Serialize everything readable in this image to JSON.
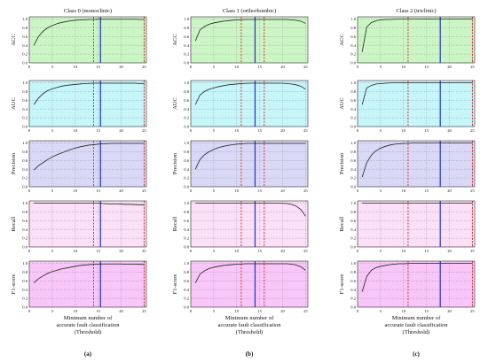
{
  "figure": {
    "columns": [
      {
        "title": "Class 0 (monoclinic)",
        "panel_label": "(a)",
        "red_lines": [
          14,
          25
        ],
        "blue_line": 15.5
      },
      {
        "title": "Class 1 (orthorhombic)",
        "panel_label": "(b)",
        "red_lines": [
          11,
          16
        ],
        "blue_line": 14
      },
      {
        "title": "Class 2 (triclinic)",
        "panel_label": "(c)",
        "red_lines": [
          11,
          25
        ],
        "blue_line": 18
      }
    ],
    "rows": [
      {
        "ylabel": "ACC",
        "fill": "#ccf5c6"
      },
      {
        "ylabel": "AUC",
        "fill": "#c6f6fa"
      },
      {
        "ylabel": "Precision",
        "fill": "#d9d9f7"
      },
      {
        "ylabel": "Recall",
        "fill": "#fbe0f7"
      },
      {
        "ylabel": "F1-score",
        "fill": "#f8c6f8"
      }
    ],
    "xlabel_lines": [
      "Minimum number of",
      "accurate fault classification",
      "(Threshold)"
    ],
    "line_colors": {
      "curve": "#222222",
      "red": "#e02020",
      "blue": "#1f2fcf"
    }
  },
  "chart_data": {
    "type": "line",
    "x": [
      1,
      2,
      3,
      4,
      5,
      6,
      7,
      8,
      9,
      10,
      11,
      12,
      13,
      14,
      15,
      16,
      17,
      18,
      19,
      20,
      21,
      22,
      23,
      24,
      25
    ],
    "xlim": [
      0,
      25.5
    ],
    "ylim": [
      0,
      1.05
    ],
    "xticks": [
      0,
      5,
      10,
      15,
      20,
      25
    ],
    "yticks": [
      0.0,
      0.2,
      0.4,
      0.6,
      0.8,
      1.0
    ],
    "grid": true,
    "series": [
      {
        "class": 0,
        "metric": "ACC",
        "values": [
          0.4,
          0.6,
          0.72,
          0.8,
          0.85,
          0.89,
          0.92,
          0.94,
          0.96,
          0.97,
          0.98,
          0.985,
          0.99,
          0.99,
          0.995,
          0.995,
          0.995,
          0.995,
          0.995,
          0.995,
          0.995,
          0.995,
          0.995,
          0.99,
          0.99
        ]
      },
      {
        "class": 0,
        "metric": "AUC",
        "values": [
          0.5,
          0.65,
          0.75,
          0.82,
          0.86,
          0.89,
          0.92,
          0.94,
          0.95,
          0.96,
          0.97,
          0.98,
          0.985,
          0.99,
          0.99,
          0.99,
          0.99,
          0.99,
          0.99,
          0.99,
          0.99,
          0.99,
          0.99,
          0.98,
          0.98
        ]
      },
      {
        "class": 0,
        "metric": "Precision",
        "values": [
          0.38,
          0.48,
          0.55,
          0.62,
          0.68,
          0.73,
          0.77,
          0.81,
          0.85,
          0.88,
          0.91,
          0.93,
          0.95,
          0.96,
          0.97,
          0.98,
          0.985,
          0.99,
          0.99,
          0.99,
          0.99,
          0.99,
          0.99,
          0.99,
          0.99
        ]
      },
      {
        "class": 0,
        "metric": "Recall",
        "values": [
          1.0,
          1.0,
          1.0,
          1.0,
          1.0,
          1.0,
          1.0,
          1.0,
          1.0,
          1.0,
          1.0,
          1.0,
          1.0,
          1.0,
          1.0,
          0.99,
          0.985,
          0.98,
          0.98,
          0.975,
          0.97,
          0.97,
          0.965,
          0.96,
          0.96
        ]
      },
      {
        "class": 0,
        "metric": "F1-score",
        "values": [
          0.55,
          0.65,
          0.71,
          0.77,
          0.81,
          0.84,
          0.87,
          0.89,
          0.91,
          0.93,
          0.95,
          0.96,
          0.97,
          0.975,
          0.98,
          0.985,
          0.985,
          0.985,
          0.985,
          0.985,
          0.98,
          0.98,
          0.98,
          0.975,
          0.975
        ]
      },
      {
        "class": 1,
        "metric": "ACC",
        "values": [
          0.5,
          0.75,
          0.83,
          0.88,
          0.91,
          0.93,
          0.95,
          0.96,
          0.97,
          0.98,
          0.985,
          0.99,
          0.99,
          0.99,
          0.99,
          0.99,
          0.99,
          0.99,
          0.99,
          0.99,
          0.99,
          0.98,
          0.97,
          0.95,
          0.9
        ]
      },
      {
        "class": 1,
        "metric": "AUC",
        "values": [
          0.5,
          0.72,
          0.8,
          0.85,
          0.88,
          0.91,
          0.93,
          0.95,
          0.96,
          0.97,
          0.98,
          0.985,
          0.99,
          0.99,
          0.99,
          0.99,
          0.99,
          0.99,
          0.99,
          0.99,
          0.98,
          0.97,
          0.95,
          0.92,
          0.85
        ]
      },
      {
        "class": 1,
        "metric": "Precision",
        "values": [
          0.4,
          0.62,
          0.73,
          0.8,
          0.85,
          0.89,
          0.92,
          0.94,
          0.96,
          0.97,
          0.98,
          0.99,
          0.99,
          0.99,
          0.99,
          0.99,
          0.99,
          0.99,
          0.99,
          0.99,
          0.99,
          0.99,
          0.99,
          0.99,
          0.99
        ]
      },
      {
        "class": 1,
        "metric": "Recall",
        "values": [
          1.0,
          1.0,
          1.0,
          1.0,
          1.0,
          1.0,
          1.0,
          1.0,
          1.0,
          1.0,
          1.0,
          1.0,
          1.0,
          1.0,
          1.0,
          1.0,
          1.0,
          1.0,
          1.0,
          0.995,
          0.99,
          0.97,
          0.93,
          0.85,
          0.7
        ]
      },
      {
        "class": 1,
        "metric": "F1-score",
        "values": [
          0.55,
          0.75,
          0.83,
          0.88,
          0.91,
          0.93,
          0.95,
          0.96,
          0.97,
          0.98,
          0.985,
          0.99,
          0.99,
          0.99,
          0.99,
          0.99,
          0.99,
          0.99,
          0.99,
          0.99,
          0.99,
          0.98,
          0.96,
          0.92,
          0.84
        ]
      },
      {
        "class": 2,
        "metric": "ACC",
        "values": [
          0.25,
          0.82,
          0.92,
          0.96,
          0.98,
          0.99,
          0.99,
          0.995,
          1.0,
          1.0,
          1.0,
          1.0,
          1.0,
          1.0,
          1.0,
          1.0,
          1.0,
          1.0,
          1.0,
          1.0,
          1.0,
          1.0,
          1.0,
          1.0,
          1.0
        ]
      },
      {
        "class": 2,
        "metric": "AUC",
        "values": [
          0.5,
          0.88,
          0.94,
          0.97,
          0.98,
          0.99,
          0.995,
          1.0,
          1.0,
          1.0,
          1.0,
          1.0,
          1.0,
          1.0,
          1.0,
          1.0,
          1.0,
          1.0,
          1.0,
          1.0,
          1.0,
          1.0,
          1.0,
          1.0,
          1.0
        ]
      },
      {
        "class": 2,
        "metric": "Precision",
        "values": [
          0.22,
          0.55,
          0.72,
          0.82,
          0.88,
          0.92,
          0.95,
          0.97,
          0.98,
          0.99,
          0.99,
          1.0,
          1.0,
          1.0,
          1.0,
          1.0,
          1.0,
          1.0,
          1.0,
          1.0,
          1.0,
          1.0,
          1.0,
          1.0,
          1.0
        ]
      },
      {
        "class": 2,
        "metric": "Recall",
        "values": [
          1.0,
          1.0,
          1.0,
          1.0,
          1.0,
          1.0,
          1.0,
          1.0,
          1.0,
          1.0,
          1.0,
          1.0,
          1.0,
          1.0,
          1.0,
          1.0,
          1.0,
          1.0,
          1.0,
          1.0,
          1.0,
          1.0,
          1.0,
          1.0,
          1.0
        ]
      },
      {
        "class": 2,
        "metric": "F1-score",
        "values": [
          0.35,
          0.7,
          0.84,
          0.9,
          0.93,
          0.95,
          0.97,
          0.98,
          0.99,
          0.99,
          0.995,
          1.0,
          1.0,
          1.0,
          1.0,
          1.0,
          1.0,
          1.0,
          1.0,
          1.0,
          1.0,
          1.0,
          1.0,
          1.0,
          1.0
        ]
      }
    ]
  }
}
